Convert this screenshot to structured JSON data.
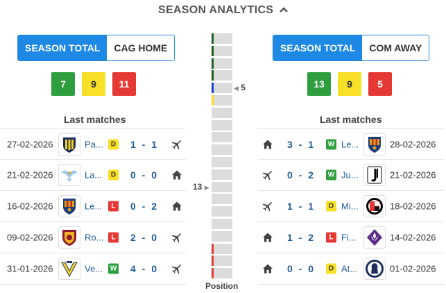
{
  "header": {
    "title": "SEASON ANALYTICS",
    "chevron_icon": "chevron-up-icon"
  },
  "left": {
    "tabs": [
      {
        "label": "SEASON TOTAL",
        "active": true
      },
      {
        "label": "CAG HOME",
        "active": false
      }
    ],
    "summary": [
      {
        "value": "7",
        "color": "#2e9e3e"
      },
      {
        "value": "9",
        "color": "#f7e025"
      },
      {
        "value": "11",
        "color": "#e53935"
      }
    ],
    "last_matches_title": "Last matches",
    "matches": [
      {
        "date": "27-02-2026",
        "team": "Pa...",
        "logo": "parma",
        "result": "D",
        "score": "1 - 1",
        "venue": "away"
      },
      {
        "date": "21-02-2026",
        "team": "La...",
        "logo": "lazio",
        "result": "D",
        "score": "0 - 0",
        "venue": "home"
      },
      {
        "date": "16-02-2026",
        "team": "Le...",
        "logo": "lecce",
        "result": "L",
        "score": "0 - 2",
        "venue": "home"
      },
      {
        "date": "09-02-2026",
        "team": "Ro...",
        "logo": "roma",
        "result": "L",
        "score": "2 - 0",
        "venue": "away"
      },
      {
        "date": "31-01-2026",
        "team": "Ve...",
        "logo": "verona",
        "result": "W",
        "score": "4 - 0",
        "venue": "away"
      }
    ]
  },
  "right": {
    "tabs": [
      {
        "label": "SEASON TOTAL",
        "active": true
      },
      {
        "label": "COM AWAY",
        "active": false
      }
    ],
    "summary": [
      {
        "value": "13",
        "color": "#2e9e3e"
      },
      {
        "value": "9",
        "color": "#f7e025"
      },
      {
        "value": "5",
        "color": "#e53935"
      }
    ],
    "last_matches_title": "Last matches",
    "matches": [
      {
        "date": "28-02-2026",
        "team": "Le...",
        "logo": "lecce",
        "result": "W",
        "score": "3 - 1",
        "venue": "home"
      },
      {
        "date": "21-02-2026",
        "team": "Ju...",
        "logo": "juventus",
        "result": "W",
        "score": "0 - 2",
        "venue": "away"
      },
      {
        "date": "18-02-2026",
        "team": "Mi...",
        "logo": "milan",
        "result": "D",
        "score": "1 - 1",
        "venue": "away"
      },
      {
        "date": "14-02-2026",
        "team": "Fi...",
        "logo": "fiorentina",
        "result": "L",
        "score": "1 - 2",
        "venue": "home"
      },
      {
        "date": "01-02-2026",
        "team": "At...",
        "logo": "atalanta",
        "result": "D",
        "score": "0 - 0",
        "venue": "home"
      }
    ]
  },
  "result_colors": {
    "W": "#2e9e3e",
    "D": "#f7e025",
    "L": "#e53935"
  },
  "position": {
    "label": "Position",
    "total": 20,
    "left_team_position": "13",
    "right_team_position": "5",
    "marks": {
      "1": "#1b5e20",
      "2": "#1b5e20",
      "3": "#1b5e20",
      "4": "#1b5e20",
      "5": "#1a3fd6",
      "6": "#f7e025",
      "18": "#e53935",
      "19": "#e53935",
      "20": "#e53935"
    }
  }
}
